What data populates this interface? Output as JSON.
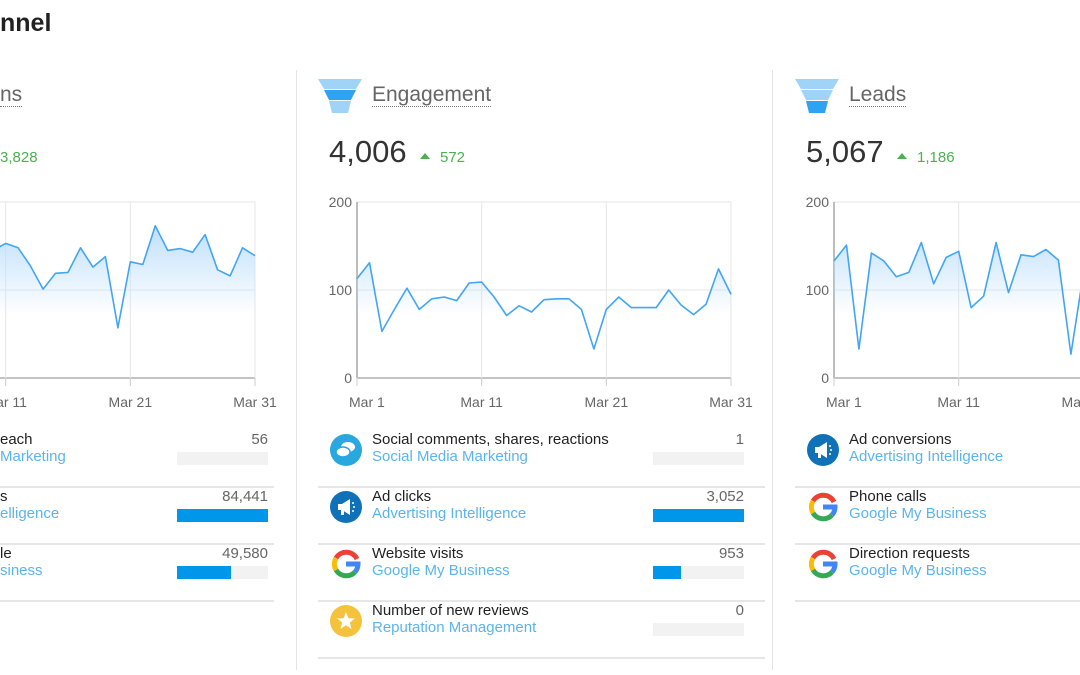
{
  "page": {
    "title_fragment": "nnel"
  },
  "colors": {
    "line": "#42a5f5",
    "area": "#bbdefb",
    "positive": "#4caf50",
    "bar": "#0097ea",
    "link": "#5bb4ee"
  },
  "axis": {
    "y_ticks": [
      "0",
      "100",
      "200"
    ],
    "x_ticks": [
      "Mar 1",
      "Mar 11",
      "Mar 21",
      "Mar 31"
    ]
  },
  "left_panel": {
    "title_fragment": "ns",
    "delta_fragment": "3,828",
    "rows": [
      {
        "label_fragment": "each",
        "sub_fragment": "Marketing",
        "value": "56",
        "fill": 0.0
      },
      {
        "label_fragment": "s",
        "sub_fragment": "elligence",
        "value": "84,441",
        "fill": 1.0
      },
      {
        "label_fragment": "le",
        "sub_fragment": "siness",
        "value": "49,580",
        "fill": 0.59
      }
    ]
  },
  "engagement": {
    "title": "Engagement",
    "funnel_icon": "funnel-middle",
    "value": "4,006",
    "delta": "572",
    "rows": [
      {
        "icon": "chat-bubbles-icon",
        "label": "Social comments, shares, reactions",
        "sub": "Social Media Marketing",
        "value": "1",
        "fill": 0.0
      },
      {
        "icon": "megaphone-icon",
        "label": "Ad clicks",
        "sub": "Advertising Intelligence",
        "value": "3,052",
        "fill": 1.0
      },
      {
        "icon": "google-icon",
        "label": "Website visits",
        "sub": "Google My Business",
        "value": "953",
        "fill": 0.31
      },
      {
        "icon": "star-icon",
        "label": "Number of new reviews",
        "sub": "Reputation Management",
        "value": "0",
        "fill": 0.0
      }
    ]
  },
  "leads": {
    "title": "Leads",
    "funnel_icon": "funnel-bottom",
    "value": "5,067",
    "delta": "1,186",
    "rows": [
      {
        "icon": "megaphone-icon",
        "label": "Ad conversions",
        "sub": "Advertising Intelligence"
      },
      {
        "icon": "google-icon",
        "label": "Phone calls",
        "sub": "Google My Business"
      },
      {
        "icon": "google-icon",
        "label": "Direction requests",
        "sub": "Google My Business"
      }
    ]
  },
  "chart_data": [
    {
      "type": "area",
      "x_start": "Mar 1",
      "x_end": "Mar 31",
      "ylim": [
        0,
        200
      ],
      "grid": true,
      "values": [
        null,
        null,
        null,
        null,
        null,
        null,
        null,
        null,
        null,
        145,
        153,
        148,
        127,
        101,
        119,
        120,
        148,
        126,
        138,
        57,
        132,
        129,
        173,
        145,
        147,
        143,
        163,
        123,
        116,
        148,
        139
      ]
    },
    {
      "type": "area",
      "x_start": "Mar 1",
      "x_end": "Mar 31",
      "ylim": [
        0,
        200
      ],
      "grid": true,
      "values": [
        113,
        131,
        53,
        78,
        102,
        78,
        90,
        92,
        88,
        108,
        109,
        92,
        71,
        82,
        75,
        89,
        90,
        90,
        78,
        33,
        78,
        92,
        80,
        80,
        80,
        100,
        83,
        72,
        84,
        124,
        95
      ]
    },
    {
      "type": "area",
      "x_start": "Mar 1",
      "x_end": "Mar 31",
      "ylim": [
        0,
        200
      ],
      "grid": true,
      "values": [
        133,
        151,
        33,
        142,
        133,
        115,
        120,
        154,
        107,
        137,
        144,
        80,
        93,
        154,
        97,
        140,
        138,
        146,
        134,
        27,
        118
      ]
    }
  ]
}
